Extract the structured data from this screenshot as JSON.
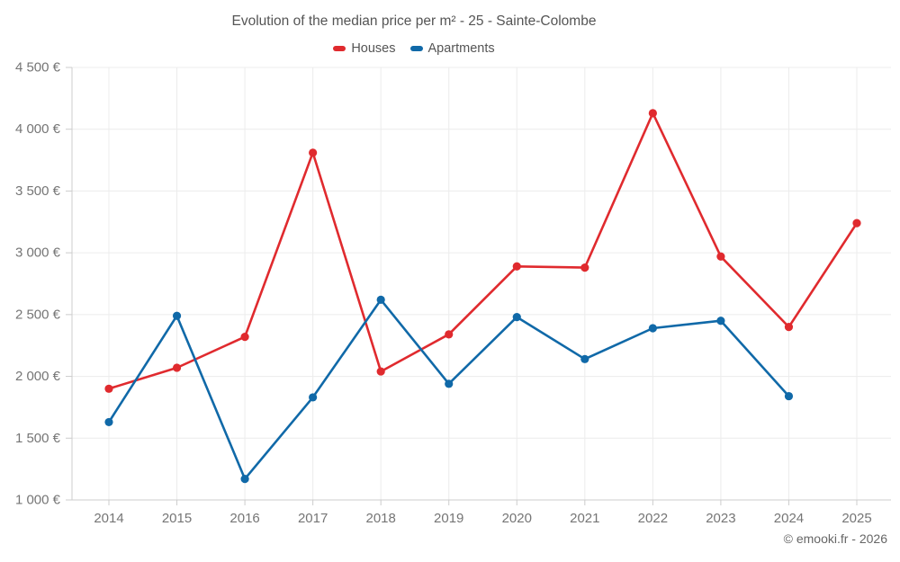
{
  "chart": {
    "title": "Evolution of the median price per m² - 25 - Sainte-Colombe",
    "copyright": "© emooki.fr - 2026"
  },
  "chart_data": {
    "type": "line",
    "title": "Evolution of the median price per m² - 25 - Sainte-Colombe",
    "categories": [
      "2014",
      "2015",
      "2016",
      "2017",
      "2018",
      "2019",
      "2020",
      "2021",
      "2022",
      "2023",
      "2024",
      "2025"
    ],
    "series": [
      {
        "name": "Houses",
        "color": "#e02a2e",
        "values": [
          1900,
          2070,
          2320,
          3810,
          2040,
          2340,
          2890,
          2880,
          4130,
          2970,
          2400,
          3240
        ]
      },
      {
        "name": "Apartments",
        "color": "#1069a8",
        "values": [
          1630,
          2490,
          1170,
          1830,
          2620,
          1940,
          2480,
          2140,
          2390,
          2450,
          1840,
          null
        ]
      }
    ],
    "ylim": [
      1000,
      4500
    ],
    "y_ticks": [
      {
        "value": 1000,
        "label": "1 000 €"
      },
      {
        "value": 1500,
        "label": "1 500 €"
      },
      {
        "value": 2000,
        "label": "2 000 €"
      },
      {
        "value": 2500,
        "label": "2 500 €"
      },
      {
        "value": 3000,
        "label": "3 000 €"
      },
      {
        "value": 3500,
        "label": "3 500 €"
      },
      {
        "value": 4000,
        "label": "4 000 €"
      },
      {
        "value": 4500,
        "label": "4 500 €"
      }
    ],
    "grid": true,
    "legend_position": "top",
    "colors": {
      "grid_line": "#ececec",
      "axis_line": "#cccccc",
      "tick_label": "#757575",
      "title_text": "#555555",
      "copyright_text": "#666666"
    }
  }
}
